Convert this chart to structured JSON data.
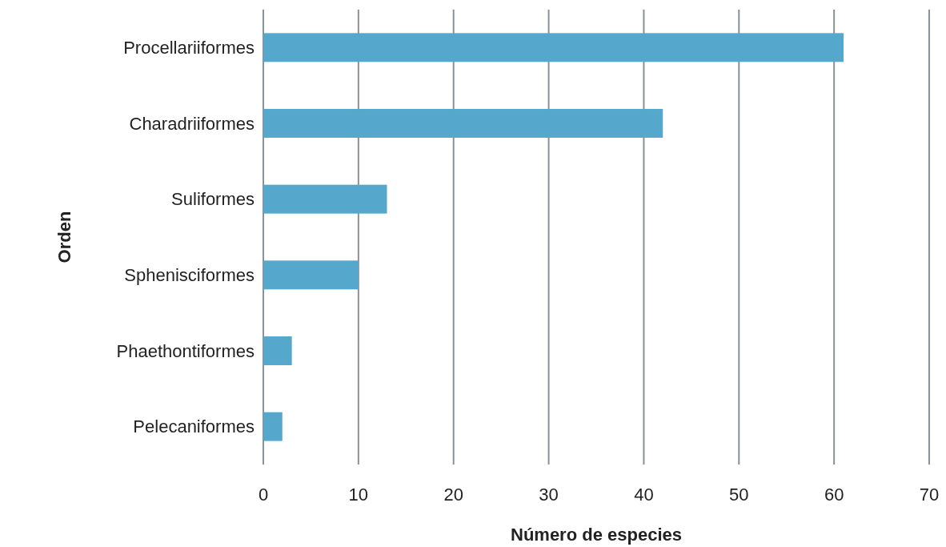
{
  "chart_data": {
    "type": "bar",
    "orientation": "horizontal",
    "xlabel": "Número de especies",
    "ylabel": "Orden",
    "categories": [
      "Procellariiformes",
      "Charadriiformes",
      "Suliformes",
      "Sphenisciformes",
      "Phaethontiformes",
      "Pelecaniformes"
    ],
    "values": [
      61,
      42,
      13,
      10,
      3,
      2
    ],
    "color": "#55a8cc",
    "xlim": [
      0,
      70
    ],
    "xticks": [
      0,
      10,
      20,
      30,
      40,
      50,
      60,
      70
    ],
    "grid": "x"
  }
}
